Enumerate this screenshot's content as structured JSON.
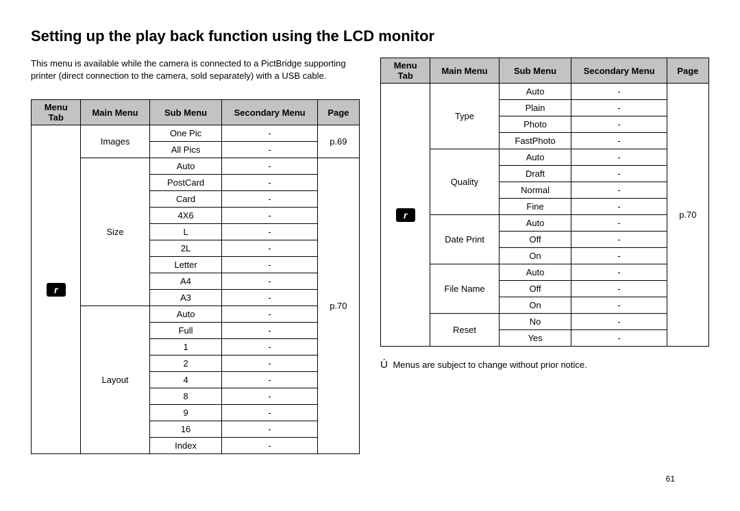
{
  "title": "Setting up the play back function using the LCD monitor",
  "intro": "This menu is available while the camera is connected to a PictBridge supporting printer (direct connection to the camera, sold separately) with a USB cable.",
  "headers": {
    "menu_tab": "Menu Tab",
    "main_menu": "Main Menu",
    "sub_menu": "Sub Menu",
    "secondary_menu": "Secondary Menu",
    "page": "Page"
  },
  "table1": {
    "icon_label": "r",
    "groups": [
      {
        "main": "Images",
        "page": "p.69",
        "subs": [
          "One Pic",
          "All Pics"
        ]
      },
      {
        "main": "Size",
        "subs": [
          "Auto",
          "PostCard",
          "Card",
          "4X6",
          "L",
          "2L",
          "Letter",
          "A4",
          "A3"
        ]
      },
      {
        "main": "Layout",
        "subs": [
          "Auto",
          "Full",
          "1",
          "2",
          "4",
          "8",
          "9",
          "16",
          "Index"
        ]
      }
    ],
    "lower_page": "p.70"
  },
  "table2": {
    "icon_label": "r",
    "page": "p.70",
    "groups": [
      {
        "main": "Type",
        "subs": [
          "Auto",
          "Plain",
          "Photo",
          "FastPhoto"
        ]
      },
      {
        "main": "Quality",
        "subs": [
          "Auto",
          "Draft",
          "Normal",
          "Fine"
        ]
      },
      {
        "main": "Date Print",
        "subs": [
          "Auto",
          "Off",
          "On"
        ]
      },
      {
        "main": "File Name",
        "subs": [
          "Auto",
          "Off",
          "On"
        ]
      },
      {
        "main": "Reset",
        "subs": [
          "No",
          "Yes"
        ]
      }
    ]
  },
  "note_symbol": "Ú",
  "note_text": "Menus are subject to change without prior notice.",
  "page_number": "61",
  "dash": "-",
  "colors": {
    "header_bg": "#c3c3c3",
    "border": "#000000",
    "text": "#000000",
    "bg": "#ffffff"
  }
}
